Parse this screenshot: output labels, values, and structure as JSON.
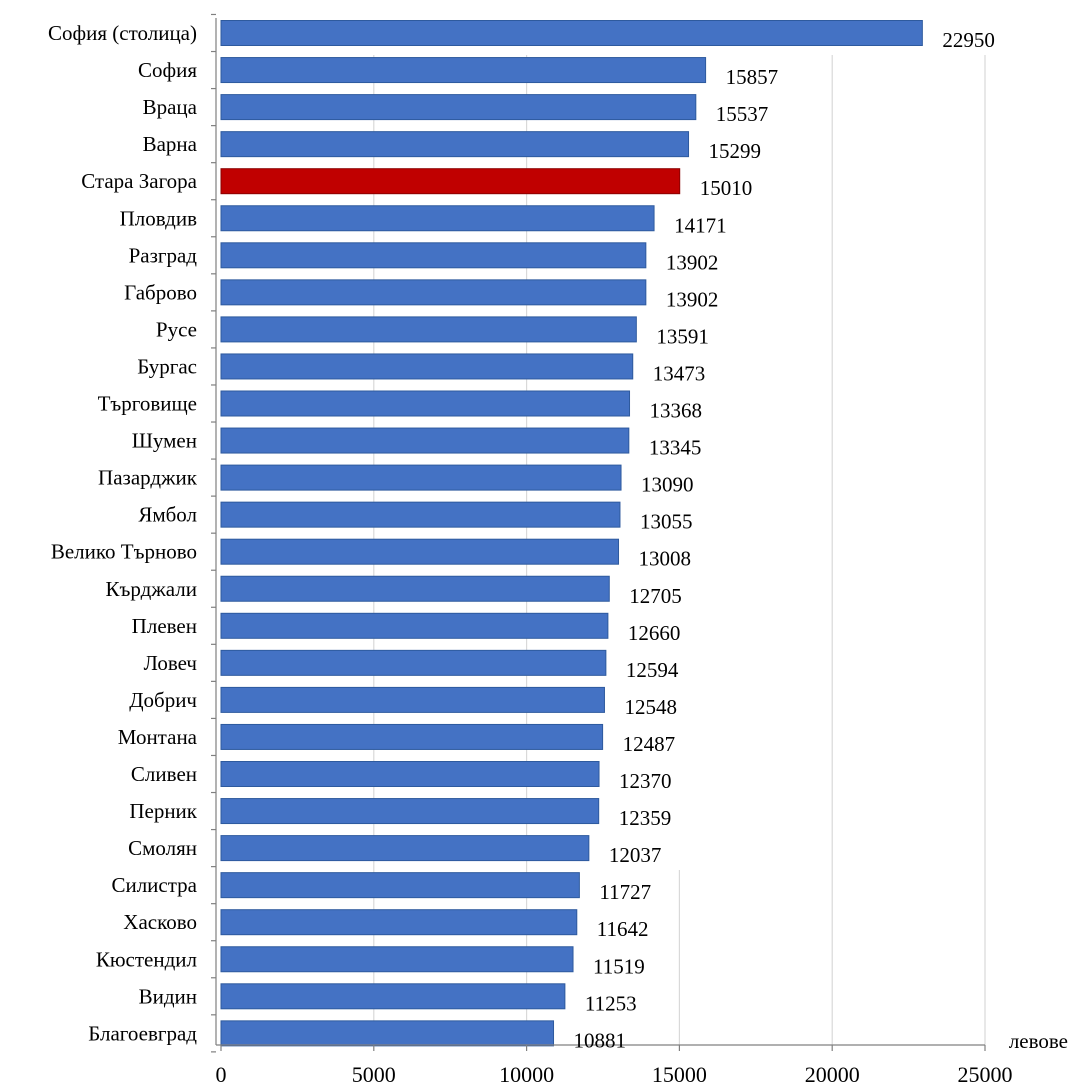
{
  "chart_data": {
    "type": "bar",
    "orientation": "horizontal",
    "categories": [
      "София (столица)",
      "София",
      "Враца",
      "Варна",
      "Стара Загора",
      "Пловдив",
      "Разград",
      "Габрово",
      "Русе",
      "Бургас",
      "Търговище",
      "Шумен",
      "Пазарджик",
      "Ямбол",
      "Велико Търново",
      "Кърджали",
      "Плевен",
      "Ловеч",
      "Добрич",
      "Монтана",
      "Сливен",
      "Перник",
      "Смолян",
      "Силистра",
      "Хасково",
      "Кюстендил",
      "Видин",
      "Благоевград"
    ],
    "values": [
      22950,
      15857,
      15537,
      15299,
      15010,
      14171,
      13902,
      13902,
      13591,
      13473,
      13368,
      13345,
      13090,
      13055,
      13008,
      12705,
      12660,
      12594,
      12548,
      12487,
      12370,
      12359,
      12037,
      11727,
      11642,
      11519,
      11253,
      10881
    ],
    "value_labels": [
      "22950",
      "15857",
      "15537",
      "15299",
      "15010",
      "14171",
      "13902",
      "13902",
      "13591",
      "13473",
      "13368",
      "13345",
      "13090",
      "13055",
      "13008",
      "12705",
      "12660",
      "12594",
      "12548",
      "12487",
      "12370",
      "12359",
      "12037",
      "11727",
      "11642",
      "11519",
      "11253",
      "10881"
    ],
    "highlight_category": "Стара Загора",
    "xlim": [
      0,
      25000
    ],
    "x_ticks": [
      0,
      5000,
      10000,
      15000,
      20000,
      25000
    ],
    "x_tick_labels": [
      "0",
      "5000",
      "10000",
      "15000",
      "20000",
      "25000"
    ],
    "x_unit_label": "левове",
    "grid": "vertical",
    "colors": {
      "bar": "#4472c4",
      "bar_edge": "#2e5a9e",
      "highlight": "#c00000",
      "highlight_edge": "#8b0000",
      "grid": "#d9d9d9",
      "axis": "#808080",
      "text": "#000000"
    }
  }
}
